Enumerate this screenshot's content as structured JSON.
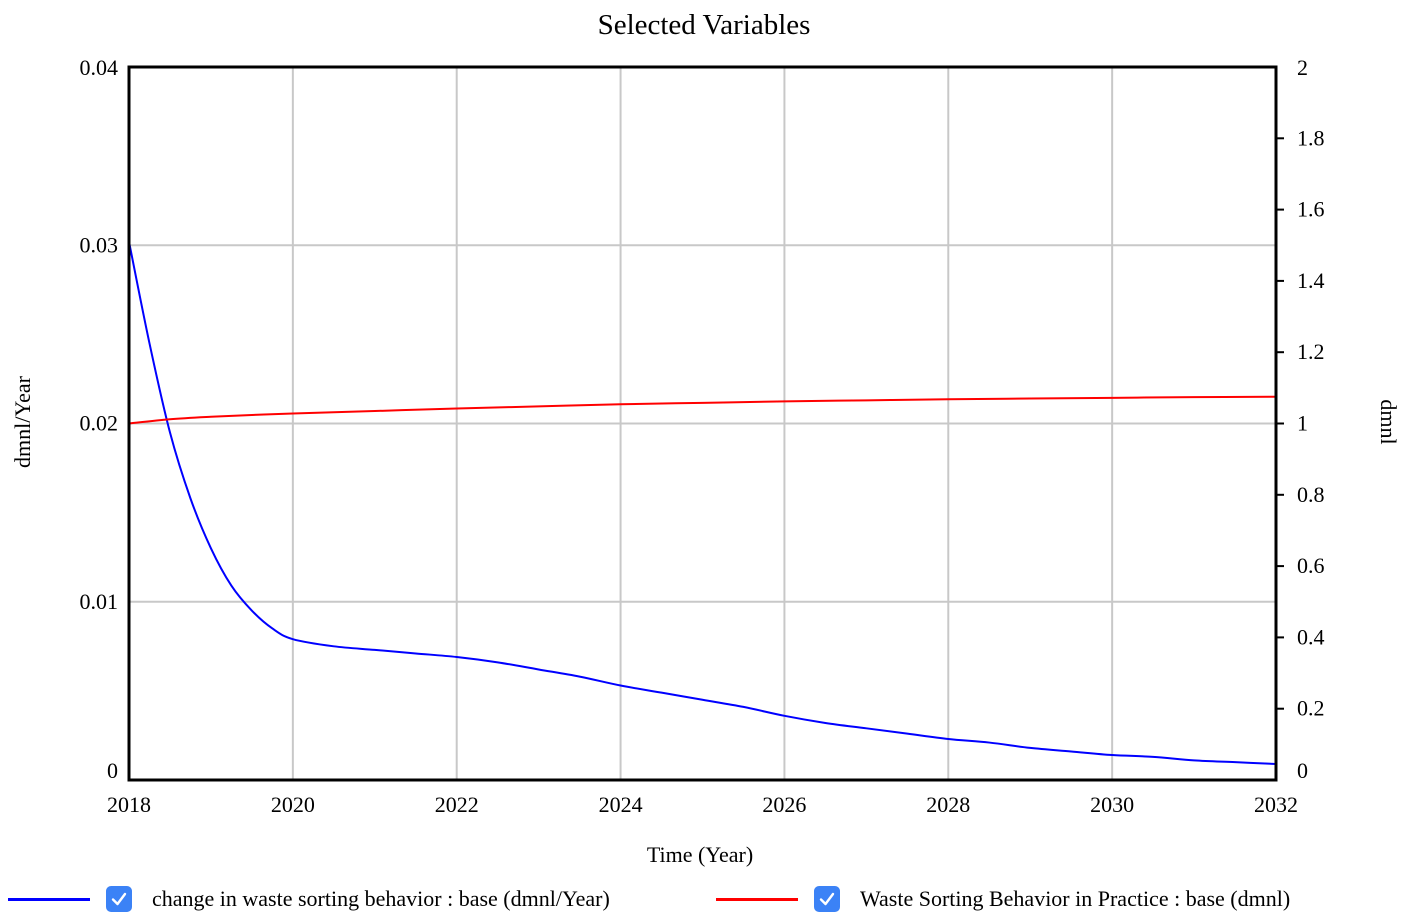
{
  "chart_data": {
    "type": "line",
    "title": "Selected Variables",
    "xlabel": "Time (Year)",
    "ylabel_left": "dmnl/Year",
    "ylabel_right": "dmnl",
    "xlim": [
      2018,
      2032
    ],
    "ylim_left": [
      0,
      0.04
    ],
    "ylim_right": [
      0,
      2
    ],
    "x_ticks": [
      "2018",
      "2020",
      "2022",
      "2024",
      "2026",
      "2028",
      "2030",
      "2032"
    ],
    "y_ticks_left": [
      "0",
      "0.01",
      "0.02",
      "0.03",
      "0.04"
    ],
    "y_ticks_right": [
      "0",
      "0.2",
      "0.4",
      "0.6",
      "0.8",
      "1",
      "1.2",
      "1.4",
      "1.6",
      "1.8",
      "2"
    ],
    "grid": true,
    "legend_position": "bottom",
    "series": [
      {
        "name": "change in waste sorting behavior : base (dmnl/Year)",
        "axis": "left",
        "color": "#0000ff",
        "checked": true,
        "x": [
          2018,
          2018.25,
          2018.5,
          2018.75,
          2019,
          2019.25,
          2019.5,
          2019.75,
          2020,
          2020.5,
          2021,
          2021.5,
          2022,
          2022.5,
          2023,
          2023.5,
          2024,
          2024.5,
          2025,
          2025.5,
          2026,
          2026.5,
          2027,
          2027.5,
          2028,
          2028.5,
          2029,
          2029.5,
          2030,
          2030.5,
          2031,
          2031.5,
          2032
        ],
        "y": [
          0.0302,
          0.0245,
          0.0195,
          0.0158,
          0.013,
          0.0109,
          0.0095,
          0.0085,
          0.0079,
          0.0075,
          0.0073,
          0.0071,
          0.0069,
          0.0066,
          0.0062,
          0.0058,
          0.0053,
          0.0049,
          0.0045,
          0.0041,
          0.0036,
          0.0032,
          0.0029,
          0.0026,
          0.0023,
          0.0021,
          0.0018,
          0.0016,
          0.0014,
          0.0013,
          0.0011,
          0.001,
          0.0009
        ]
      },
      {
        "name": "Waste Sorting Behavior in Practice : base (dmnl)",
        "axis": "right",
        "color": "#ff0000",
        "checked": true,
        "x": [
          2018,
          2018.5,
          2019,
          2019.5,
          2020,
          2021,
          2022,
          2023,
          2024,
          2025,
          2026,
          2027,
          2028,
          2029,
          2030,
          2031,
          2032
        ],
        "y": [
          1.0,
          1.012,
          1.019,
          1.024,
          1.028,
          1.035,
          1.042,
          1.048,
          1.054,
          1.058,
          1.062,
          1.065,
          1.068,
          1.07,
          1.072,
          1.074,
          1.075
        ]
      }
    ]
  }
}
